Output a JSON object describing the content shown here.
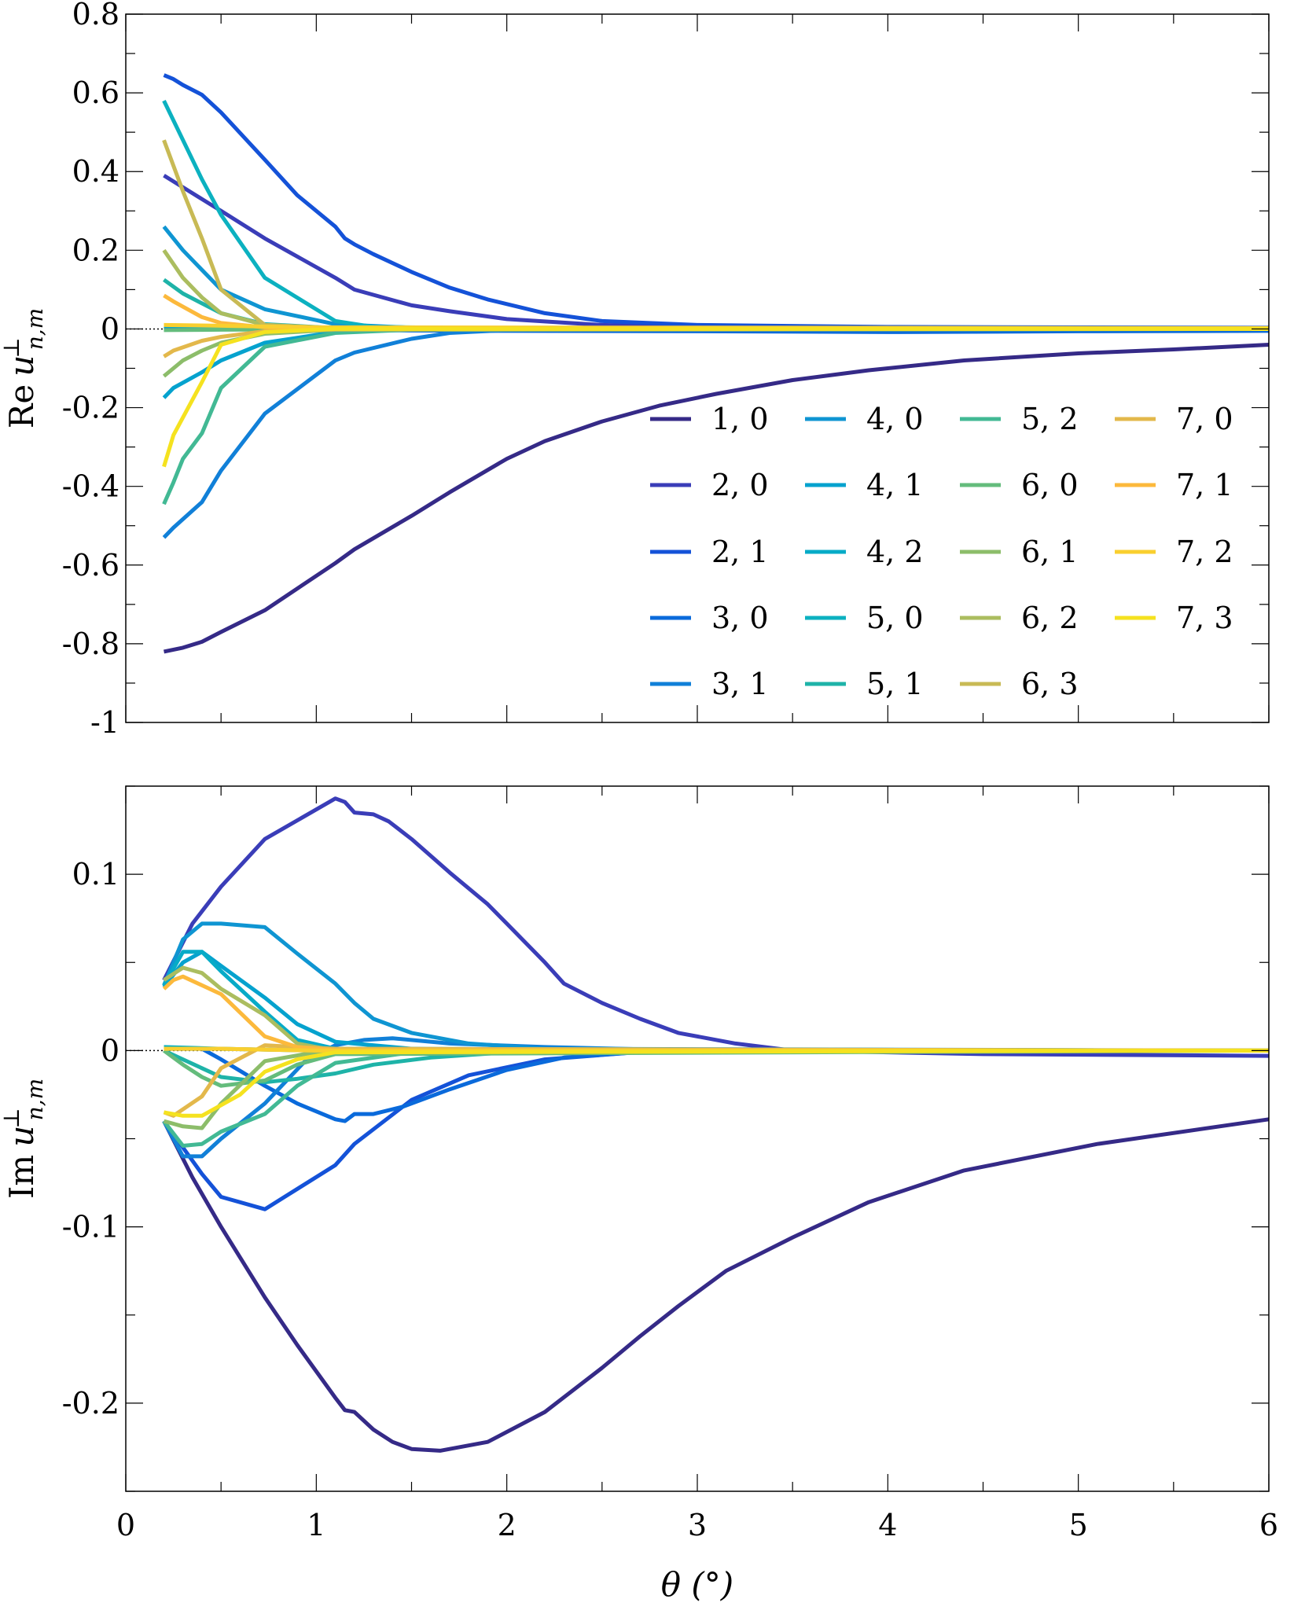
{
  "chart_data": [
    {
      "type": "line",
      "xlim": [
        0,
        6
      ],
      "ylim": [
        -1,
        0.8
      ],
      "xticks": [
        "0",
        "1",
        "2",
        "3",
        "4",
        "5",
        "6"
      ],
      "yticks": [
        {
          "v": 0.8,
          "t": "0.8"
        },
        {
          "v": 0.6,
          "t": "0.6"
        },
        {
          "v": 0.4,
          "t": "0.4"
        },
        {
          "v": 0.2,
          "t": "0.2"
        },
        {
          "v": 0,
          "t": "0"
        },
        {
          "v": -0.2,
          "t": "-0.2"
        },
        {
          "v": -0.4,
          "t": "-0.4"
        },
        {
          "v": -0.6,
          "t": "-0.6"
        },
        {
          "v": -0.8,
          "t": "-0.8"
        },
        {
          "v": -1,
          "t": "-1"
        }
      ],
      "show_xtick_labels": false,
      "ylabel": {
        "prefix": "Re",
        "symbol": "u",
        "sup": "⊥",
        "sub": "n,m"
      },
      "legend": "inside-bottom-right, 4 columns",
      "grid": false,
      "series": [
        {
          "name": "1, 0",
          "color": "#352A87",
          "x": [
            0.2,
            0.3,
            0.4,
            0.5,
            0.73,
            1.1,
            1.2,
            1.5,
            1.7,
            2,
            2.2,
            2.5,
            2.8,
            3.1,
            3.5,
            3.9,
            4.4,
            5,
            5.5,
            6
          ],
          "y": [
            -0.82,
            -0.81,
            -0.795,
            -0.77,
            -0.715,
            -0.595,
            -0.56,
            -0.475,
            -0.415,
            -0.33,
            -0.285,
            -0.235,
            -0.195,
            -0.165,
            -0.13,
            -0.105,
            -0.08,
            -0.062,
            -0.052,
            -0.04
          ]
        },
        {
          "name": "2, 0",
          "color": "#3A3DB8",
          "x": [
            0.2,
            0.3,
            0.4,
            0.5,
            0.73,
            1.1,
            1.15,
            1.2,
            1.5,
            1.7,
            2,
            2.5,
            3,
            4,
            6
          ],
          "y": [
            0.39,
            0.36,
            0.33,
            0.3,
            0.23,
            0.13,
            0.115,
            0.1,
            0.06,
            0.045,
            0.025,
            0.01,
            0.005,
            0.002,
            0.001
          ]
        },
        {
          "name": "2, 1",
          "color": "#1452D8",
          "x": [
            0.2,
            0.25,
            0.3,
            0.4,
            0.5,
            0.73,
            0.9,
            1.1,
            1.15,
            1.2,
            1.3,
            1.5,
            1.7,
            1.9,
            2.2,
            2.5,
            3,
            4,
            6
          ],
          "y": [
            0.645,
            0.635,
            0.62,
            0.595,
            0.55,
            0.43,
            0.34,
            0.26,
            0.23,
            0.215,
            0.19,
            0.145,
            0.105,
            0.075,
            0.04,
            0.02,
            0.01,
            0.005,
            0.003
          ]
        },
        {
          "name": "3, 0",
          "color": "#0A6ADB",
          "x": [
            0.2,
            0.5,
            0.73,
            1,
            1.5,
            2,
            3,
            4,
            5,
            6
          ],
          "y": [
            0.005,
            0.003,
            0,
            -0.002,
            -0.004,
            -0.005,
            -0.006,
            -0.008,
            -0.006,
            -0.005
          ]
        },
        {
          "name": "3, 1",
          "color": "#1180D8",
          "x": [
            0.2,
            0.25,
            0.4,
            0.5,
            0.73,
            1.1,
            1.2,
            1.5,
            1.7,
            2,
            2.5,
            3,
            6
          ],
          "y": [
            -0.53,
            -0.505,
            -0.44,
            -0.36,
            -0.215,
            -0.08,
            -0.06,
            -0.025,
            -0.01,
            -0.003,
            -0.001,
            0,
            0
          ]
        },
        {
          "name": "4, 0",
          "color": "#0F95D2",
          "x": [
            0.2,
            0.3,
            0.4,
            0.5,
            0.73,
            1.1,
            1.5,
            2,
            6
          ],
          "y": [
            0.26,
            0.2,
            0.15,
            0.1,
            0.05,
            0.012,
            0.003,
            0.001,
            0
          ]
        },
        {
          "name": "4, 1",
          "color": "#05A2CE",
          "x": [
            0.2,
            0.25,
            0.4,
            0.5,
            0.73,
            1.1,
            1.5,
            2,
            6
          ],
          "y": [
            -0.175,
            -0.15,
            -0.11,
            -0.08,
            -0.035,
            -0.008,
            -0.002,
            0,
            0
          ]
        },
        {
          "name": "4, 2",
          "color": "#07ABC7",
          "x": [
            0.2,
            0.5,
            1,
            2,
            6
          ],
          "y": [
            0.008,
            0.006,
            0.003,
            0.001,
            0
          ]
        },
        {
          "name": "5, 0",
          "color": "#0CB1C0",
          "x": [
            0.2,
            0.25,
            0.4,
            0.5,
            0.73,
            1.1,
            1.3,
            2,
            6
          ],
          "y": [
            0.58,
            0.53,
            0.38,
            0.29,
            0.13,
            0.02,
            0.005,
            0.001,
            0
          ]
        },
        {
          "name": "5, 1",
          "color": "#1EB3A8",
          "x": [
            0.2,
            0.3,
            0.4,
            0.5,
            0.73,
            1.1,
            6
          ],
          "y": [
            0.125,
            0.09,
            0.065,
            0.04,
            0.012,
            0.002,
            0
          ]
        },
        {
          "name": "5, 2",
          "color": "#42B994",
          "x": [
            0.2,
            0.25,
            0.3,
            0.4,
            0.5,
            0.73,
            1.1,
            1.5,
            6
          ],
          "y": [
            -0.445,
            -0.39,
            -0.33,
            -0.265,
            -0.15,
            -0.045,
            -0.01,
            -0.002,
            0
          ]
        },
        {
          "name": "6, 0",
          "color": "#64BC7C",
          "x": [
            0.2,
            0.5,
            1,
            6
          ],
          "y": [
            -0.003,
            -0.002,
            -0.001,
            0
          ]
        },
        {
          "name": "6, 1",
          "color": "#8CBD6A",
          "x": [
            0.2,
            0.25,
            0.3,
            0.4,
            0.5,
            0.73,
            1.1,
            6
          ],
          "y": [
            -0.12,
            -0.1,
            -0.08,
            -0.055,
            -0.035,
            -0.012,
            -0.002,
            0
          ]
        },
        {
          "name": "6, 2",
          "color": "#ABBD5F",
          "x": [
            0.2,
            0.3,
            0.4,
            0.5,
            0.73,
            1.1,
            6
          ],
          "y": [
            0.2,
            0.13,
            0.08,
            0.04,
            0.01,
            0.002,
            0
          ]
        },
        {
          "name": "6, 3",
          "color": "#C8BA55",
          "x": [
            0.2,
            0.3,
            0.4,
            0.5,
            0.73,
            1.1,
            6
          ],
          "y": [
            0.48,
            0.35,
            0.23,
            0.1,
            0.01,
            0.002,
            0
          ]
        },
        {
          "name": "7, 0",
          "color": "#E3B84B",
          "x": [
            0.2,
            0.25,
            0.4,
            0.5,
            0.73,
            1.1,
            6
          ],
          "y": [
            -0.07,
            -0.055,
            -0.03,
            -0.02,
            -0.006,
            -0.001,
            0
          ]
        },
        {
          "name": "7, 1",
          "color": "#FCB93C",
          "x": [
            0.2,
            0.25,
            0.4,
            0.5,
            0.73,
            1.1,
            6
          ],
          "y": [
            0.085,
            0.07,
            0.03,
            0.015,
            0.004,
            0.001,
            0
          ]
        },
        {
          "name": "7, 2",
          "color": "#F9CF2F",
          "x": [
            0.2,
            0.5,
            1,
            6
          ],
          "y": [
            0.01,
            0.008,
            0.004,
            0.002
          ]
        },
        {
          "name": "7, 3",
          "color": "#F5E21F",
          "x": [
            0.2,
            0.25,
            0.4,
            0.5,
            0.73,
            1.1,
            6
          ],
          "y": [
            -0.35,
            -0.27,
            -0.135,
            -0.04,
            -0.008,
            0,
            0
          ]
        }
      ]
    },
    {
      "type": "line",
      "xlim": [
        0,
        6
      ],
      "ylim": [
        -0.25,
        0.15
      ],
      "xticks": [
        "0",
        "1",
        "2",
        "3",
        "4",
        "5",
        "6"
      ],
      "yticks": [
        {
          "v": 0.1,
          "t": "0.1"
        },
        {
          "v": 0,
          "t": "0"
        },
        {
          "v": -0.1,
          "t": "-0.1"
        },
        {
          "v": -0.2,
          "t": "-0.2"
        }
      ],
      "show_xtick_labels": true,
      "xlabel": "θ (°)",
      "ylabel": {
        "prefix": "Im",
        "symbol": "u",
        "sup": "⊥",
        "sub": "n,m"
      },
      "grid": false,
      "series": [
        {
          "color": "#352A87",
          "x": [
            0.2,
            0.35,
            0.5,
            0.73,
            0.9,
            1.1,
            1.15,
            1.2,
            1.3,
            1.4,
            1.5,
            1.65,
            1.8,
            1.9,
            2.2,
            2.5,
            2.7,
            2.9,
            3.15,
            3.5,
            3.9,
            4.4,
            5.1,
            6
          ],
          "y": [
            -0.04,
            -0.072,
            -0.1,
            -0.14,
            -0.167,
            -0.197,
            -0.204,
            -0.205,
            -0.215,
            -0.222,
            -0.226,
            -0.227,
            -0.224,
            -0.222,
            -0.205,
            -0.18,
            -0.162,
            -0.145,
            -0.125,
            -0.106,
            -0.086,
            -0.068,
            -0.053,
            -0.039
          ]
        },
        {
          "color": "#3A3DB8",
          "x": [
            0.2,
            0.35,
            0.5,
            0.73,
            1.1,
            1.15,
            1.2,
            1.3,
            1.38,
            1.5,
            1.7,
            1.9,
            2,
            2.2,
            2.3,
            2.5,
            2.7,
            2.9,
            3.2,
            3.5,
            4.5,
            6
          ],
          "y": [
            0.04,
            0.072,
            0.093,
            0.12,
            0.143,
            0.141,
            0.135,
            0.134,
            0.13,
            0.12,
            0.101,
            0.083,
            0.072,
            0.05,
            0.038,
            0.027,
            0.018,
            0.01,
            0.004,
            0,
            -0.002,
            -0.003
          ]
        },
        {
          "color": "#1452D8",
          "x": [
            0.2,
            0.4,
            0.5,
            0.73,
            1.1,
            1.2,
            1.5,
            1.8,
            2.2,
            2.8,
            6
          ],
          "y": [
            -0.04,
            -0.07,
            -0.083,
            -0.09,
            -0.065,
            -0.053,
            -0.028,
            -0.014,
            -0.005,
            0,
            0
          ]
        },
        {
          "color": "#0A6ADB",
          "x": [
            0.2,
            0.3,
            0.4,
            0.5,
            0.73,
            0.9,
            1.1,
            1.15,
            1.2,
            1.3,
            1.45,
            1.7,
            2,
            2.3,
            2.8,
            6
          ],
          "y": [
            0.001,
            0.001,
            0.001,
            -0.005,
            -0.02,
            -0.03,
            -0.039,
            -0.04,
            -0.036,
            -0.036,
            -0.032,
            -0.022,
            -0.011,
            -0.004,
            0,
            0
          ]
        },
        {
          "color": "#1180D8",
          "x": [
            0.2,
            0.3,
            0.4,
            0.5,
            0.73,
            0.95,
            1.1,
            1.25,
            1.4,
            1.7,
            2.2,
            3,
            6
          ],
          "y": [
            -0.04,
            -0.06,
            -0.06,
            -0.05,
            -0.03,
            -0.005,
            0.003,
            0.006,
            0.007,
            0.004,
            0.002,
            0,
            0
          ]
        },
        {
          "color": "#0F95D2",
          "x": [
            0.2,
            0.3,
            0.4,
            0.5,
            0.73,
            0.9,
            1.1,
            1.2,
            1.3,
            1.5,
            1.8,
            2.2,
            6
          ],
          "y": [
            0.037,
            0.063,
            0.072,
            0.072,
            0.07,
            0.055,
            0.038,
            0.027,
            0.018,
            0.01,
            0.004,
            0.001,
            0
          ]
        },
        {
          "color": "#05A2CE",
          "x": [
            0.2,
            0.3,
            0.4,
            0.5,
            0.73,
            0.9,
            1.1,
            1.5,
            2,
            6
          ],
          "y": [
            0.036,
            0.05,
            0.056,
            0.048,
            0.03,
            0.015,
            0.005,
            0.001,
            0,
            0
          ]
        },
        {
          "color": "#07ABC7",
          "x": [
            0.2,
            0.3,
            0.4,
            0.5,
            0.73,
            0.9,
            1.1,
            6
          ],
          "y": [
            0.037,
            0.056,
            0.056,
            0.045,
            0.022,
            0.006,
            0.001,
            0
          ]
        },
        {
          "color": "#0CB1C0",
          "x": [
            0.2,
            0.5,
            1,
            6
          ],
          "y": [
            0.002,
            0.001,
            0,
            0
          ]
        },
        {
          "color": "#1EB3A8",
          "x": [
            0.2,
            0.3,
            0.4,
            0.5,
            0.73,
            0.9,
            1.1,
            1.3,
            1.6,
            2,
            6
          ],
          "y": [
            0,
            -0.005,
            -0.01,
            -0.015,
            -0.018,
            -0.016,
            -0.013,
            -0.008,
            -0.004,
            -0.001,
            0
          ]
        },
        {
          "color": "#42B994",
          "x": [
            0.2,
            0.3,
            0.4,
            0.5,
            0.73,
            0.9,
            1.1,
            1.5,
            6
          ],
          "y": [
            -0.04,
            -0.054,
            -0.053,
            -0.046,
            -0.036,
            -0.02,
            -0.007,
            -0.001,
            0
          ]
        },
        {
          "color": "#64BC7C",
          "x": [
            0.2,
            0.3,
            0.4,
            0.5,
            0.73,
            0.9,
            1.1,
            6
          ],
          "y": [
            0,
            -0.008,
            -0.015,
            -0.02,
            -0.017,
            -0.008,
            -0.002,
            0
          ]
        },
        {
          "color": "#8CBD6A",
          "x": [
            0.2,
            0.3,
            0.4,
            0.5,
            0.73,
            1.1,
            6
          ],
          "y": [
            -0.04,
            -0.043,
            -0.044,
            -0.03,
            -0.006,
            0.001,
            0
          ]
        },
        {
          "color": "#ABBD5F",
          "x": [
            0.2,
            0.3,
            0.4,
            0.5,
            0.73,
            0.9,
            1.1,
            6
          ],
          "y": [
            0.04,
            0.047,
            0.044,
            0.035,
            0.02,
            0.004,
            0,
            0
          ]
        },
        {
          "color": "#C8BA55",
          "x": [
            0.2,
            0.5,
            1,
            6
          ],
          "y": [
            0.001,
            0.001,
            0,
            0
          ]
        },
        {
          "color": "#E3B84B",
          "x": [
            0.2,
            0.25,
            0.4,
            0.5,
            0.73,
            0.9,
            1.1,
            6
          ],
          "y": [
            -0.035,
            -0.037,
            -0.026,
            -0.01,
            0.003,
            0.002,
            0.001,
            0
          ]
        },
        {
          "color": "#FCB93C",
          "x": [
            0.2,
            0.25,
            0.3,
            0.5,
            0.73,
            0.9,
            1.1,
            6
          ],
          "y": [
            0.035,
            0.04,
            0.042,
            0.032,
            0.008,
            0.002,
            0,
            0
          ]
        },
        {
          "color": "#F9CF2F",
          "x": [
            0.2,
            0.5,
            1,
            6
          ],
          "y": [
            0.001,
            0.001,
            0,
            0
          ]
        },
        {
          "color": "#F5E21F",
          "x": [
            0.2,
            0.3,
            0.4,
            0.6,
            0.73,
            0.9,
            1.1,
            6
          ],
          "y": [
            -0.035,
            -0.037,
            -0.037,
            -0.025,
            -0.012,
            -0.005,
            -0.001,
            0
          ]
        }
      ]
    }
  ]
}
